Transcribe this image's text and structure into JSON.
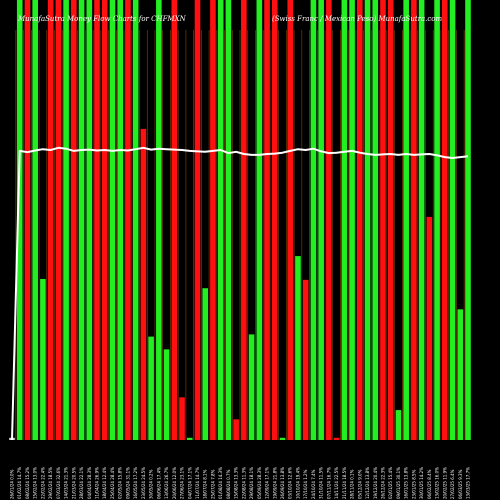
{
  "page": {
    "title_left": "MunafaSutra Money Flow Charts for CHFMXN",
    "title_right": "(Swiss Franc / Mexican Peso) MunafaSutra.com"
  },
  "chart_data": {
    "type": "bar",
    "title": "MunafaSutra Money Flow Charts for CHFMXN",
    "subtitle": "(Swiss Franc / Mexican Peso) MunafaSutra.com",
    "background": "#000000",
    "colors": {
      "up": "#22ee22",
      "down": "#ff1010",
      "neutral": "#dddddd",
      "separator": "#8a4a00",
      "price_line": "#ffffff"
    },
    "ylim": [
      0,
      1
    ],
    "categories": [
      "26/01/24 0.0%",
      "01/02/24 14.7%",
      "08/02/24 15.2%",
      "15/02/24 13.0%",
      "22/02/24 22.4%",
      "29/02/24 18.5%",
      "07/03/24 32.6%",
      "14/03/24 21.3%",
      "21/03/24 20.5%",
      "28/03/24 22.1%",
      "04/04/24 28.3%",
      "11/04/24 26.9%",
      "18/04/24 12.4%",
      "25/04/24 28.4%",
      "02/05/24 15.8%",
      "09/05/24 31.1%",
      "16/05/24 17.2%",
      "23/05/24 24.5%",
      "30/05/24 0.2%",
      "06/06/24 17.4%",
      "13/06/24 26.7%",
      "20/06/24 12.0%",
      "27/06/24 23.1%",
      "04/07/24 17.1%",
      "11/07/24 14.7%",
      "18/07/24 8.1%",
      "25/07/24 7.8%",
      "01/08/24 14.3%",
      "08/08/24 0.7%",
      "15/08/24 13.3%",
      "22/08/24 11.3%",
      "29/08/24 18.1%",
      "05/09/24 28.3%",
      "12/09/24 17.1%",
      "19/09/24 21.8%",
      "26/09/24 13.8%",
      "03/10/24 12.6%",
      "10/10/24 19.4%",
      "17/10/24 1.2%",
      "24/10/24 7.4%",
      "31/10/24 11.5%",
      "07/11/24 16.7%",
      "14/11/24 22.5%",
      "21/11/24 18.5%",
      "28/11/24 0.1%",
      "05/12/24 9.0%",
      "12/12/24 13.8%",
      "19/12/24 20.4%",
      "26/12/24 22.3%",
      "02/01/25 15.4%",
      "09/01/25 30.1%",
      "16/01/25 13.8%",
      "23/01/25 8.5%",
      "30/01/25 14.2%",
      "06/02/25 8.4%",
      "13/02/25 16.0%",
      "20/02/25 11.9%",
      "27/02/25 6.4%",
      "06/03/25 9.3%",
      "13/03/25 17.7%"
    ],
    "series": [
      {
        "type": "bar",
        "directions": [
          "n",
          "u",
          "d",
          "u",
          "u",
          "d",
          "d",
          "u",
          "d",
          "u",
          "u",
          "d",
          "d",
          "u",
          "u",
          "d",
          "u",
          "d",
          "u",
          "u",
          "u",
          "d",
          "d",
          "u",
          "d",
          "u",
          "d",
          "u",
          "u",
          "d",
          "d",
          "u",
          "u",
          "d",
          "d",
          "u",
          "d",
          "u",
          "d",
          "u",
          "u",
          "d",
          "d",
          "u",
          "u",
          "d",
          "u",
          "u",
          "d",
          "d",
          "u",
          "u",
          "d",
          "u",
          "d",
          "u",
          "d",
          "u",
          "u",
          "u"
        ],
        "values": [
          0.005,
          1.0,
          1.0,
          1.0,
          0.366,
          1.0,
          1.0,
          1.0,
          1.0,
          1.0,
          1.0,
          1.0,
          1.0,
          1.0,
          1.0,
          1.0,
          1.0,
          0.707,
          0.235,
          1.0,
          0.206,
          1.0,
          0.097,
          0.005,
          1.0,
          0.345,
          1.0,
          1.0,
          1.0,
          0.047,
          1.0,
          0.24,
          1.0,
          1.0,
          1.0,
          0.005,
          1.0,
          0.418,
          0.364,
          1.0,
          1.0,
          1.0,
          0.005,
          1.0,
          1.0,
          1.0,
          1.0,
          1.0,
          1.0,
          1.0,
          0.068,
          1.0,
          1.0,
          1.0,
          0.507,
          1.0,
          1.0,
          1.0,
          0.297,
          1.0
        ]
      },
      {
        "type": "line",
        "values": [
          0.0,
          0.657,
          0.654,
          0.658,
          0.661,
          0.659,
          0.664,
          0.662,
          0.657,
          0.659,
          0.66,
          0.658,
          0.659,
          0.657,
          0.659,
          0.658,
          0.661,
          0.664,
          0.66,
          0.662,
          0.661,
          0.66,
          0.659,
          0.657,
          0.656,
          0.655,
          0.657,
          0.659,
          0.652,
          0.655,
          0.65,
          0.648,
          0.648,
          0.65,
          0.651,
          0.653,
          0.657,
          0.661,
          0.659,
          0.662,
          0.656,
          0.652,
          0.653,
          0.655,
          0.657,
          0.653,
          0.65,
          0.648,
          0.649,
          0.65,
          0.648,
          0.65,
          0.648,
          0.649,
          0.65,
          0.647,
          0.643,
          0.641,
          0.643,
          0.645
        ]
      }
    ]
  }
}
